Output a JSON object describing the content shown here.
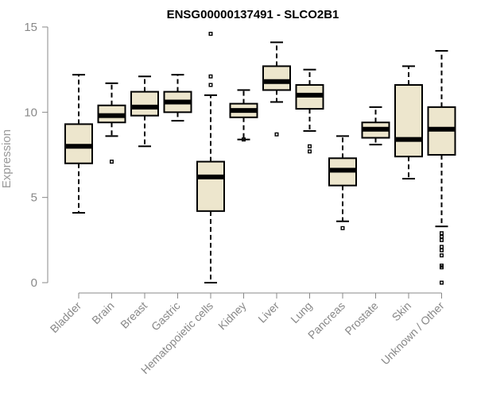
{
  "chart_data": {
    "type": "box",
    "title": "ENSG00000137491 - SLCO2B1",
    "xlabel": "",
    "ylabel": "Expression",
    "ylim": [
      0,
      15
    ],
    "yticks": [
      0,
      5,
      10,
      15
    ],
    "box_fill": "#ede6cd",
    "categories": [
      "Bladder",
      "Brain",
      "Breast",
      "Gastric",
      "Hematopoietic cells",
      "Kidney",
      "Liver",
      "Lung",
      "Pancreas",
      "Prostate",
      "Skin",
      "Unknown / Other"
    ],
    "boxes": [
      {
        "label": "Bladder",
        "min": 4.1,
        "q1": 7.0,
        "median": 8.0,
        "q3": 9.3,
        "max": 12.2,
        "outliers": []
      },
      {
        "label": "Brain",
        "min": 8.6,
        "q1": 9.4,
        "median": 9.8,
        "q3": 10.4,
        "max": 11.7,
        "outliers": [
          7.1
        ]
      },
      {
        "label": "Breast",
        "min": 8.0,
        "q1": 9.8,
        "median": 10.3,
        "q3": 11.2,
        "max": 12.1,
        "outliers": []
      },
      {
        "label": "Gastric",
        "min": 9.5,
        "q1": 10.0,
        "median": 10.6,
        "q3": 11.2,
        "max": 12.2,
        "outliers": []
      },
      {
        "label": "Hematopoietic cells",
        "min": 0.0,
        "q1": 4.2,
        "median": 6.2,
        "q3": 7.1,
        "max": 11.0,
        "outliers": [
          11.6,
          12.1,
          14.6
        ]
      },
      {
        "label": "Kidney",
        "min": 8.4,
        "q1": 9.7,
        "median": 10.1,
        "q3": 10.5,
        "max": 11.3,
        "outliers": [
          8.4
        ]
      },
      {
        "label": "Liver",
        "min": 10.6,
        "q1": 11.3,
        "median": 11.8,
        "q3": 12.7,
        "max": 14.1,
        "outliers": [
          8.7
        ]
      },
      {
        "label": "Lung",
        "min": 8.9,
        "q1": 10.2,
        "median": 11.0,
        "q3": 11.6,
        "max": 12.5,
        "outliers": [
          7.7,
          8.0
        ]
      },
      {
        "label": "Pancreas",
        "min": 3.6,
        "q1": 5.7,
        "median": 6.6,
        "q3": 7.3,
        "max": 8.6,
        "outliers": [
          3.2
        ]
      },
      {
        "label": "Prostate",
        "min": 8.1,
        "q1": 8.5,
        "median": 9.0,
        "q3": 9.4,
        "max": 10.3,
        "outliers": []
      },
      {
        "label": "Skin",
        "min": 6.1,
        "q1": 7.4,
        "median": 8.4,
        "q3": 11.6,
        "max": 12.7,
        "outliers": []
      },
      {
        "label": "Unknown / Other",
        "min": 3.3,
        "q1": 7.5,
        "median": 9.0,
        "q3": 10.3,
        "max": 13.6,
        "outliers": [
          0.0,
          0.9,
          1.0,
          1.6,
          1.9,
          2.1,
          2.5,
          2.7,
          2.9
        ]
      }
    ]
  }
}
